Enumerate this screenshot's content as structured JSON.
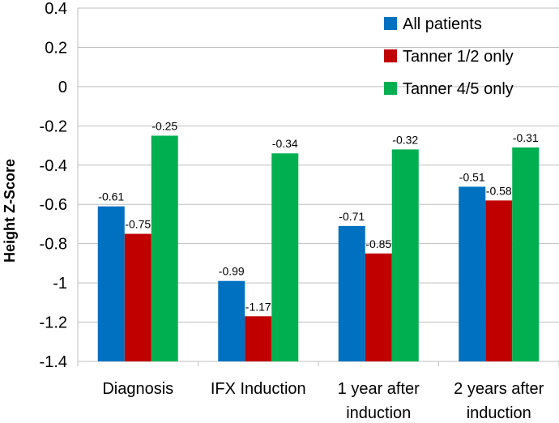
{
  "chart_data": {
    "type": "bar",
    "title": "",
    "xlabel": "",
    "ylabel": "Height Z-Score",
    "ylim": [
      -1.4,
      0.4
    ],
    "yticks": [
      "0.4",
      "0.2",
      "0",
      "-0.2",
      "-0.4",
      "-0.6",
      "-0.8",
      "-1",
      "-1.2",
      "-1.4"
    ],
    "ytick_values": [
      0.4,
      0.2,
      0,
      -0.2,
      -0.4,
      -0.6,
      -0.8,
      -1.0,
      -1.2,
      -1.4
    ],
    "categories": [
      [
        "Diagnosis"
      ],
      [
        "IFX Induction"
      ],
      [
        "1 year after",
        "induction"
      ],
      [
        "2 years after",
        "induction"
      ]
    ],
    "grid": true,
    "legend_position": "top-right",
    "series": [
      {
        "name": "All patients",
        "color": "#0070C0",
        "values": [
          -0.61,
          -0.99,
          -0.71,
          -0.51
        ],
        "labels": [
          "-0.61",
          "-0.99",
          "-0.71",
          "-0.51"
        ]
      },
      {
        "name": "Tanner 1/2 only",
        "color": "#C00000",
        "values": [
          -0.75,
          -1.17,
          -0.85,
          -0.58
        ],
        "labels": [
          "-0.75",
          "-1.17",
          "-0.85",
          "-0.58"
        ]
      },
      {
        "name": "Tanner 4/5 only",
        "color": "#00B050",
        "values": [
          -0.25,
          -0.34,
          -0.32,
          -0.31
        ],
        "labels": [
          "-0.25",
          "-0.34",
          "-0.32",
          "-0.31"
        ]
      }
    ]
  }
}
